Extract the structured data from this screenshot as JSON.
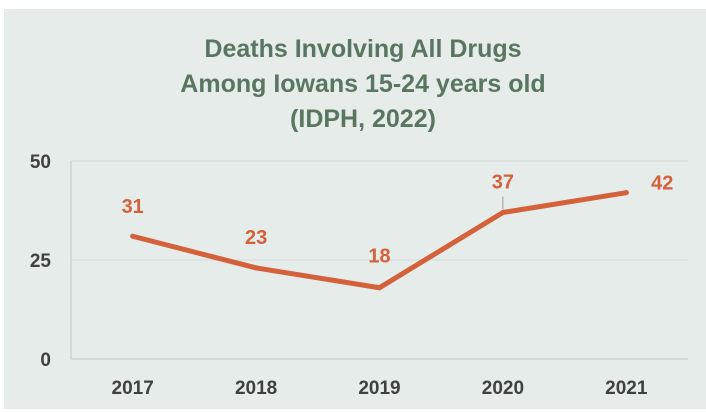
{
  "chart_data": {
    "type": "line",
    "title_lines": [
      "Deaths Involving All Drugs",
      "Among Iowans 15-24 years old",
      "(IDPH, 2022)"
    ],
    "categories": [
      "2017",
      "2018",
      "2019",
      "2020",
      "2021"
    ],
    "series": [
      {
        "values": [
          31,
          23,
          18,
          37,
          42
        ],
        "color": "#d4613a"
      }
    ],
    "data_labels": [
      "31",
      "23",
      "18",
      "37",
      "42"
    ],
    "y_ticks": [
      "0",
      "25",
      "50"
    ],
    "ylim": [
      0,
      50
    ],
    "xlabel": "",
    "ylabel": "",
    "grid": true,
    "legend": "none",
    "colors": {
      "background": "#e6ecea",
      "title": "#5a7560",
      "line": "#d4613a",
      "tick_text": "#404040",
      "grid": "#d2d9d5"
    }
  }
}
